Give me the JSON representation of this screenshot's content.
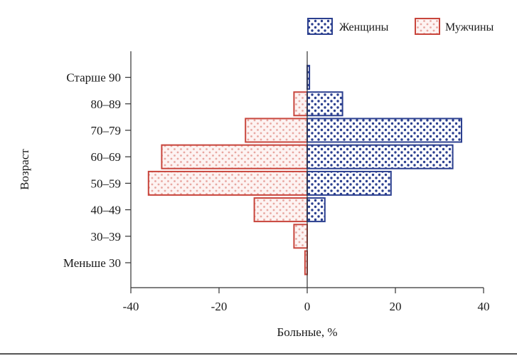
{
  "chart_data": {
    "type": "bar",
    "orientation": "horizontal",
    "title": "",
    "xlabel": "Больные, %",
    "ylabel": "Возраст",
    "xlim": [
      -40,
      40
    ],
    "xticks": [
      -40,
      -20,
      0,
      20,
      40
    ],
    "xtick_labels": [
      "-40",
      "-20",
      "0",
      "20",
      "40"
    ],
    "categories": [
      "Старше 90",
      "80–89",
      "70–79",
      "60–69",
      "50–59",
      "40–49",
      "30–39",
      "Меньше 30"
    ],
    "series": [
      {
        "name": "Женщины",
        "color": "#2b3f8f",
        "values": [
          0.5,
          8,
          35,
          33,
          19,
          4,
          0,
          0
        ]
      },
      {
        "name": "Мужчины",
        "color": "#c8453c",
        "values": [
          0,
          -3,
          -14,
          -33,
          -36,
          -12,
          -3,
          -0.5
        ]
      }
    ],
    "legend": {
      "position": "top-right",
      "entries": [
        "Женщины",
        "Мужчины"
      ]
    },
    "grid": false
  }
}
